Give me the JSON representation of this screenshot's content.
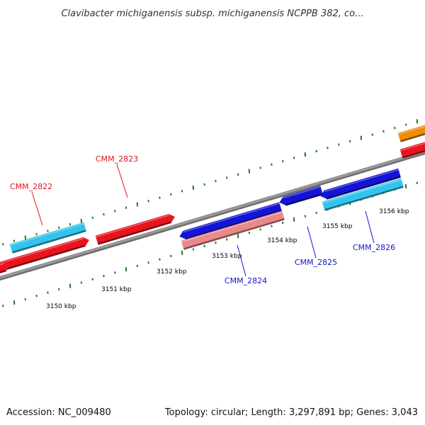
{
  "title": "Clavibacter michiganensis subsp. michiganensis NCPPB 382, co...",
  "footer": {
    "accession": "Accession: NC_009480",
    "stats": "Topology: circular; Length: 3,297,891 bp; Genes: 3,043"
  },
  "colors": {
    "backbone": "#8c8c8c",
    "tick": "#1e7a1e",
    "cds_forward": "#e8141e",
    "cds_reverse": "#1414d6",
    "cds_forward_light": "#e88a8a",
    "cds_reverse_light": "#33c4ee",
    "cds_other": "#f08c0a",
    "label_forward": "#e0141e",
    "label_reverse": "#1414c8"
  },
  "tick_labels": [
    "3150 kbp",
    "3151 kbp",
    "3152 kbp",
    "3153 kbp",
    "3154 kbp",
    "3155 kbp",
    "3156 kbp"
  ],
  "gene_labels": [
    {
      "name": "CMM_2822",
      "strand": "forward"
    },
    {
      "name": "CMM_2823",
      "strand": "forward"
    },
    {
      "name": "CMM_2824",
      "strand": "reverse"
    },
    {
      "name": "CMM_2825",
      "strand": "reverse"
    },
    {
      "name": "CMM_2826",
      "strand": "reverse"
    }
  ]
}
